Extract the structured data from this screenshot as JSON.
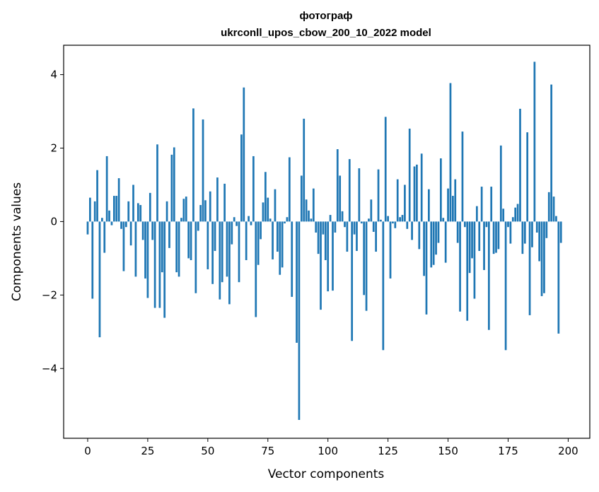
{
  "chart_data": {
    "type": "bar",
    "title_line1": "фотограф",
    "title_line2": "ukrconll_upos_cbow_200_10_2022 model",
    "xlabel": "Vector components",
    "ylabel": "Components values",
    "xlim": [
      -10,
      209
    ],
    "ylim": [
      -5.9,
      4.8
    ],
    "xticks": [
      0,
      25,
      50,
      75,
      100,
      125,
      150,
      175,
      200
    ],
    "xtick_labels": [
      "0",
      "25",
      "50",
      "75",
      "100",
      "125",
      "150",
      "175",
      "200"
    ],
    "yticks": [
      -4,
      -2,
      0,
      2,
      4
    ],
    "ytick_labels": [
      "−4",
      "−2",
      "0",
      "2",
      "4"
    ],
    "bar_color": "#1f77b4",
    "grid": false,
    "values": [
      -0.35,
      0.65,
      -2.1,
      0.55,
      1.4,
      -3.15,
      0.1,
      -0.85,
      1.78,
      0.3,
      -0.1,
      0.7,
      0.7,
      1.18,
      -0.2,
      -1.35,
      -0.15,
      0.55,
      -0.65,
      1.0,
      -1.5,
      0.5,
      0.45,
      -0.5,
      -1.55,
      -2.08,
      0.78,
      -0.5,
      -2.35,
      2.1,
      -2.35,
      -1.38,
      -2.62,
      0.55,
      -0.72,
      1.82,
      2.02,
      -1.38,
      -1.5,
      0.1,
      0.62,
      0.68,
      -1.0,
      -1.05,
      3.08,
      -1.95,
      -0.25,
      0.45,
      2.78,
      0.58,
      -1.3,
      0.82,
      -1.7,
      -0.8,
      1.2,
      -2.12,
      -1.65,
      1.03,
      -1.5,
      -2.25,
      -0.62,
      0.12,
      -0.12,
      -1.65,
      2.37,
      3.65,
      -1.05,
      0.15,
      -0.1,
      1.78,
      -2.6,
      -1.18,
      -0.48,
      0.52,
      1.35,
      0.65,
      0.08,
      -1.03,
      0.88,
      -0.82,
      -1.45,
      -1.25,
      -0.05,
      0.12,
      1.75,
      -2.05,
      0.0,
      -3.3,
      -5.4,
      1.25,
      2.8,
      0.6,
      0.3,
      0.08,
      0.9,
      -0.3,
      -0.88,
      -2.4,
      -0.35,
      -1.05,
      -1.9,
      0.18,
      -1.88,
      -0.3,
      1.97,
      1.25,
      0.28,
      -0.15,
      -0.82,
      1.7,
      -3.25,
      -0.35,
      -0.8,
      1.45,
      -0.05,
      -2.0,
      -2.43,
      0.08,
      0.6,
      -0.28,
      -0.82,
      1.42,
      0.05,
      -3.5,
      2.85,
      0.15,
      -1.55,
      -0.05,
      -0.18,
      1.15,
      0.12,
      0.18,
      1.0,
      -0.2,
      2.53,
      -0.5,
      1.5,
      1.55,
      -0.75,
      1.85,
      -1.48,
      -2.53,
      0.88,
      -1.25,
      -1.18,
      -0.9,
      -0.58,
      1.72,
      0.1,
      -1.12,
      0.9,
      3.77,
      0.7,
      1.15,
      -0.58,
      -2.45,
      2.45,
      -0.15,
      -2.7,
      -1.4,
      -1.0,
      -2.1,
      0.42,
      -0.8,
      0.95,
      -1.32,
      -0.15,
      -2.95,
      0.95,
      -0.88,
      -0.85,
      -0.75,
      2.07,
      0.35,
      -3.5,
      -0.15,
      -0.6,
      0.12,
      0.38,
      0.48,
      3.07,
      -0.88,
      -0.6,
      2.43,
      -2.55,
      -0.7,
      4.35,
      -0.3,
      -1.08,
      -2.03,
      -1.95,
      -0.45,
      0.8,
      3.73,
      0.68,
      0.15,
      -3.05,
      -0.58
    ]
  }
}
